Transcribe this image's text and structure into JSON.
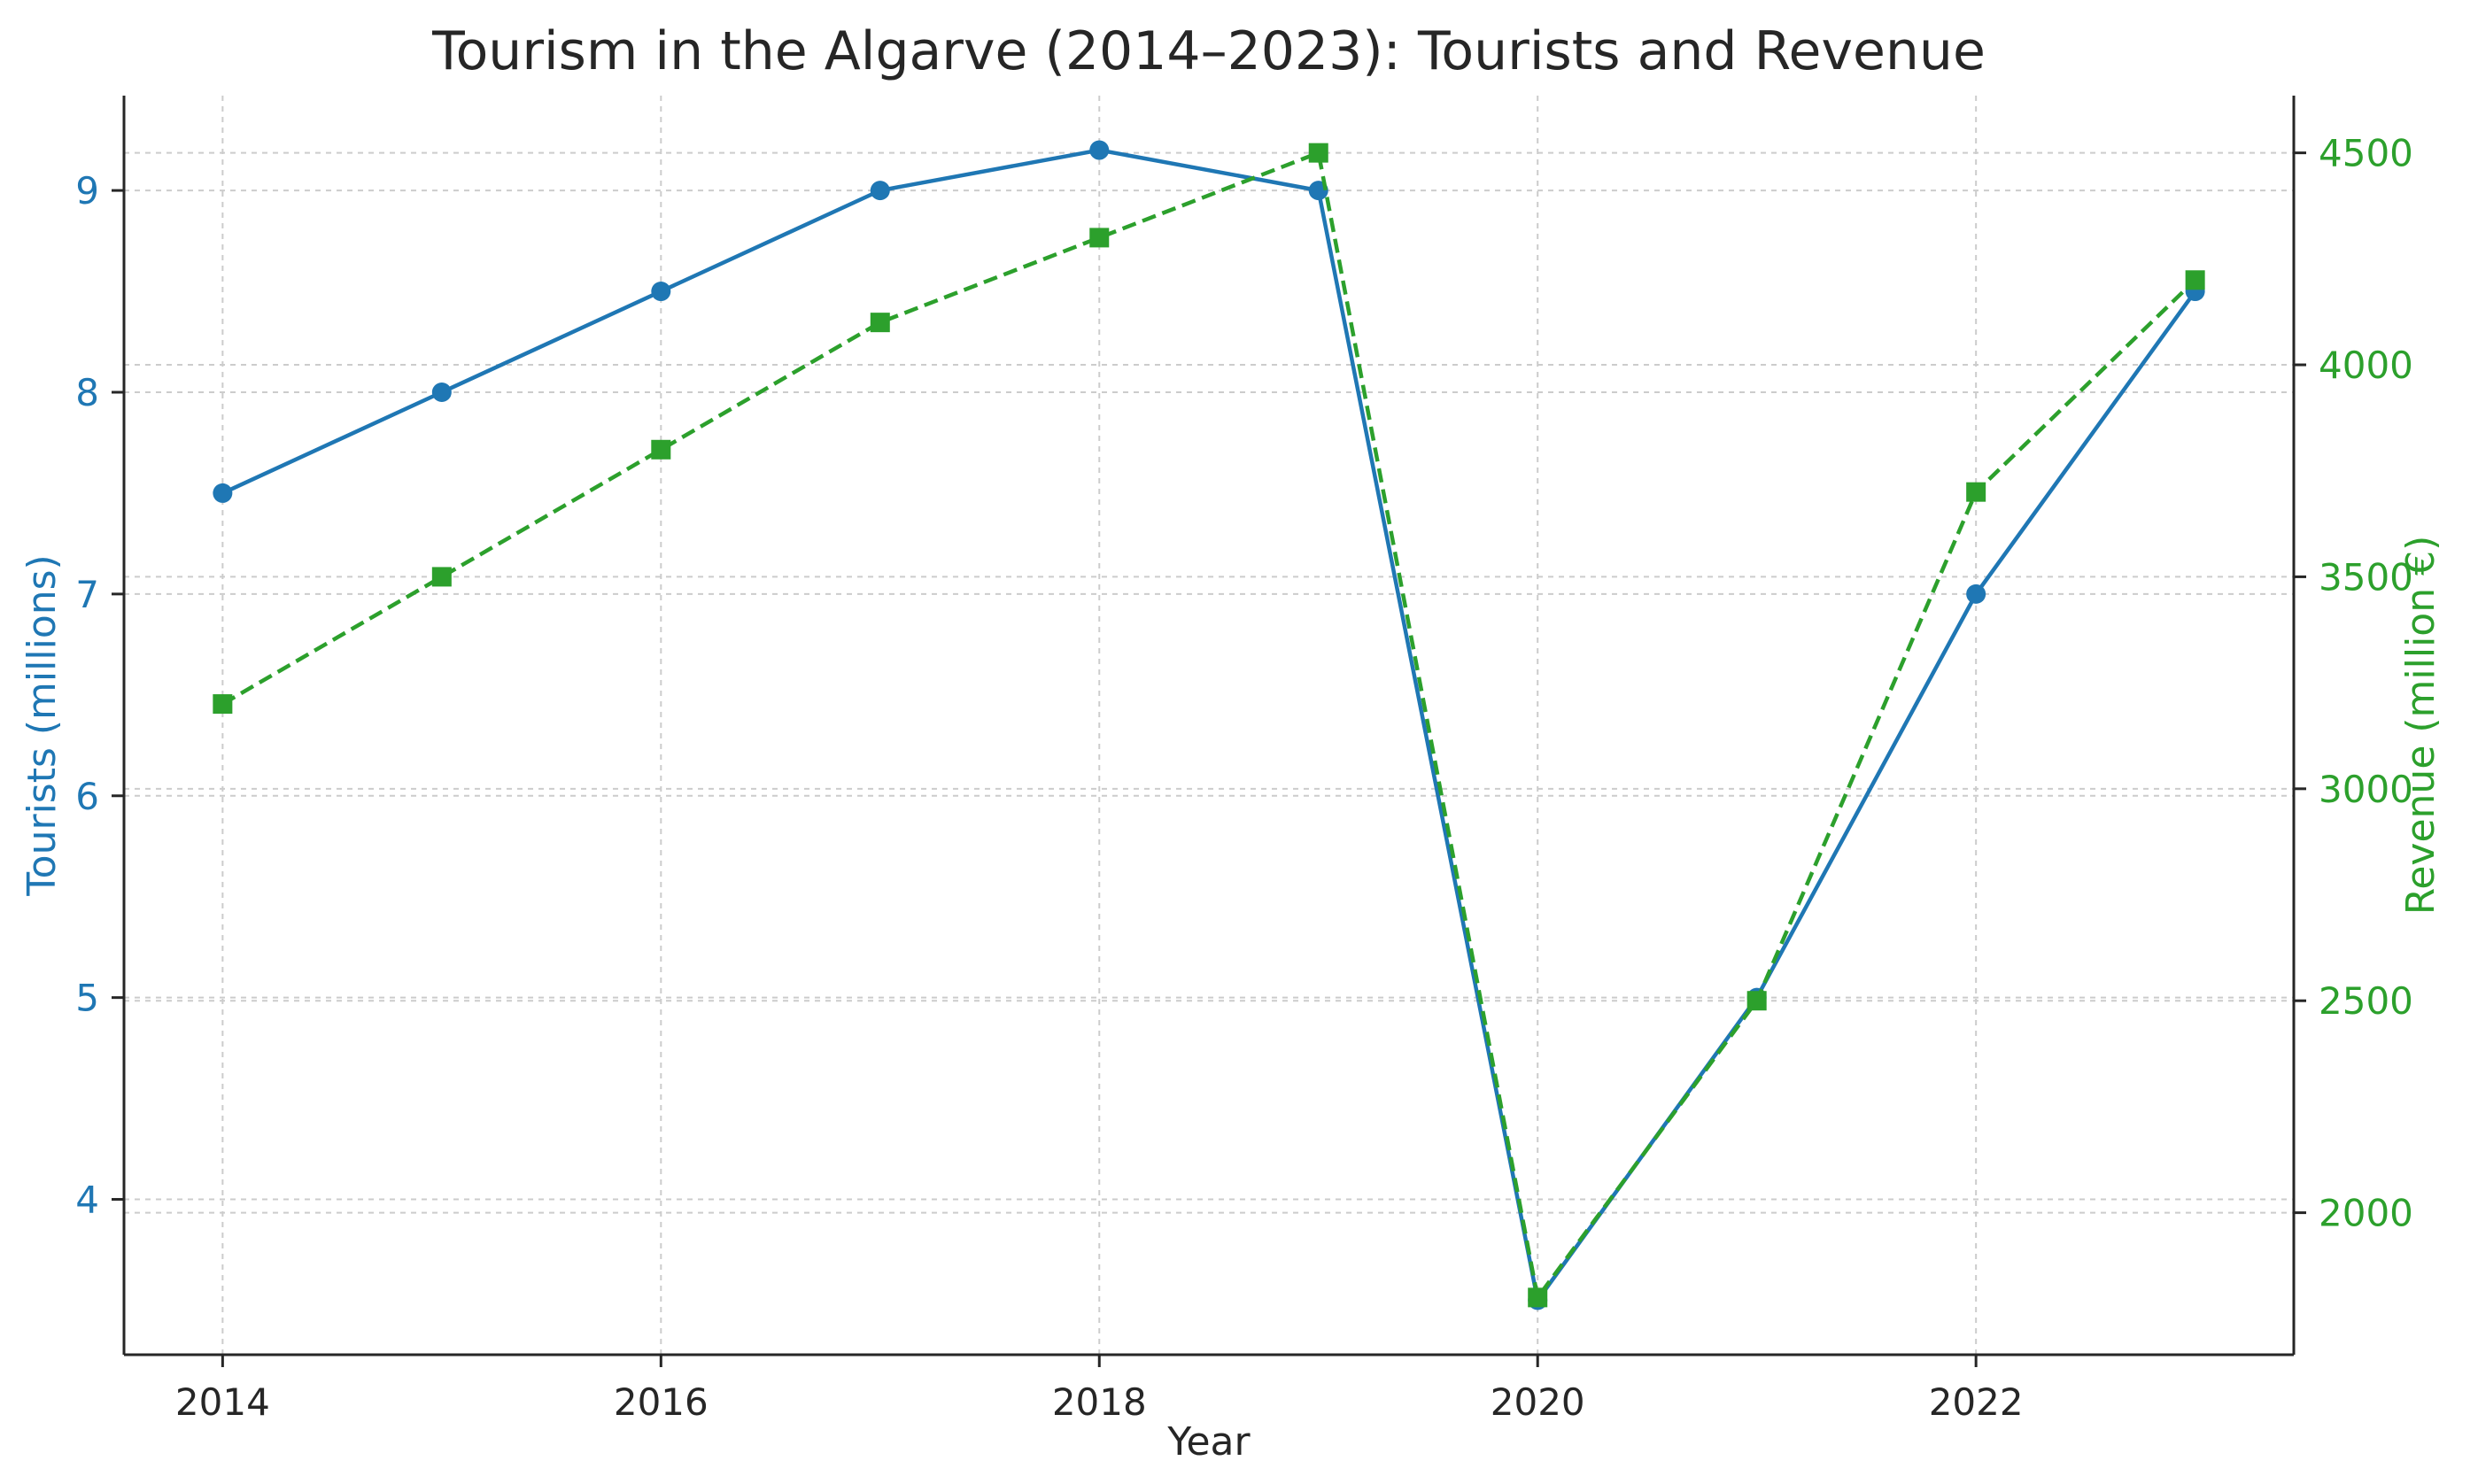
{
  "chart_data": {
    "type": "line",
    "title": "Tourism in the Algarve (2014–2023): Tourists and Revenue",
    "xlabel": "Year",
    "x": [
      2014,
      2015,
      2016,
      2017,
      2018,
      2019,
      2020,
      2021,
      2022,
      2023
    ],
    "xlim": [
      2013.55,
      2023.45
    ],
    "x_ticks": [
      "2014",
      "2016",
      "2018",
      "2020",
      "2022"
    ],
    "grid": true,
    "legend": "none",
    "axes": {
      "left": {
        "label": "Tourists (millions)",
        "color": "#1f77b4",
        "ylim": [
          3.23,
          9.47
        ],
        "ticks": [
          "4",
          "5",
          "6",
          "7",
          "8",
          "9"
        ]
      },
      "right": {
        "label": "Revenue (million €)",
        "color": "#2ca02c",
        "ylim": [
          1665,
          4635
        ],
        "ticks": [
          "2000",
          "2500",
          "3000",
          "3500",
          "4000",
          "4500"
        ]
      }
    },
    "series": [
      {
        "axis": "left",
        "color": "#1f77b4",
        "line_style": "solid",
        "marker": "circle",
        "values": [
          7.5,
          8.0,
          8.5,
          9.0,
          9.2,
          9.0,
          3.5,
          5.0,
          7.0,
          8.5
        ]
      },
      {
        "axis": "right",
        "color": "#2ca02c",
        "line_style": "dashed",
        "marker": "square",
        "values": [
          3200,
          3500,
          3800,
          4100,
          4300,
          4500,
          1800,
          2500,
          3700,
          4200
        ]
      }
    ]
  }
}
